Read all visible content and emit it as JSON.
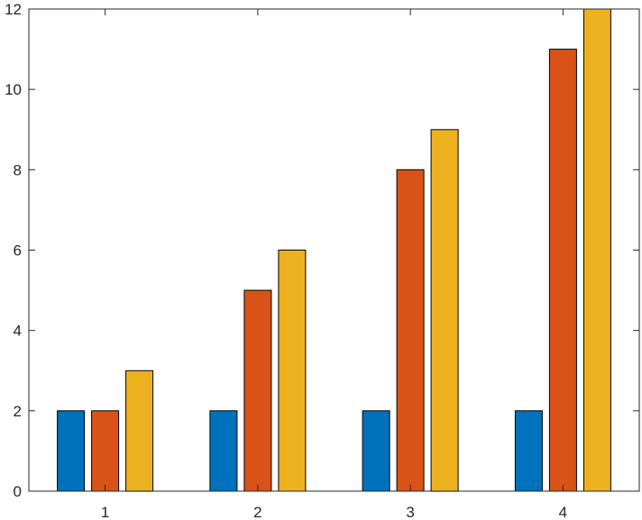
{
  "chart_data": {
    "type": "bar",
    "title": "",
    "xlabel": "",
    "ylabel": "",
    "categories": [
      "1",
      "2",
      "3",
      "4"
    ],
    "series": [
      {
        "values": [
          2,
          2,
          2,
          2
        ],
        "color": "#0072BD"
      },
      {
        "values": [
          2,
          5,
          8,
          11
        ],
        "color": "#D95319"
      },
      {
        "values": [
          3,
          6,
          9,
          12
        ],
        "color": "#EDB120"
      }
    ],
    "ylim": [
      0,
      12
    ],
    "yticks": [
      "0",
      "2",
      "4",
      "6",
      "8",
      "10",
      "12"
    ],
    "grid": false,
    "legend": "none",
    "axis_color": "#262626"
  }
}
